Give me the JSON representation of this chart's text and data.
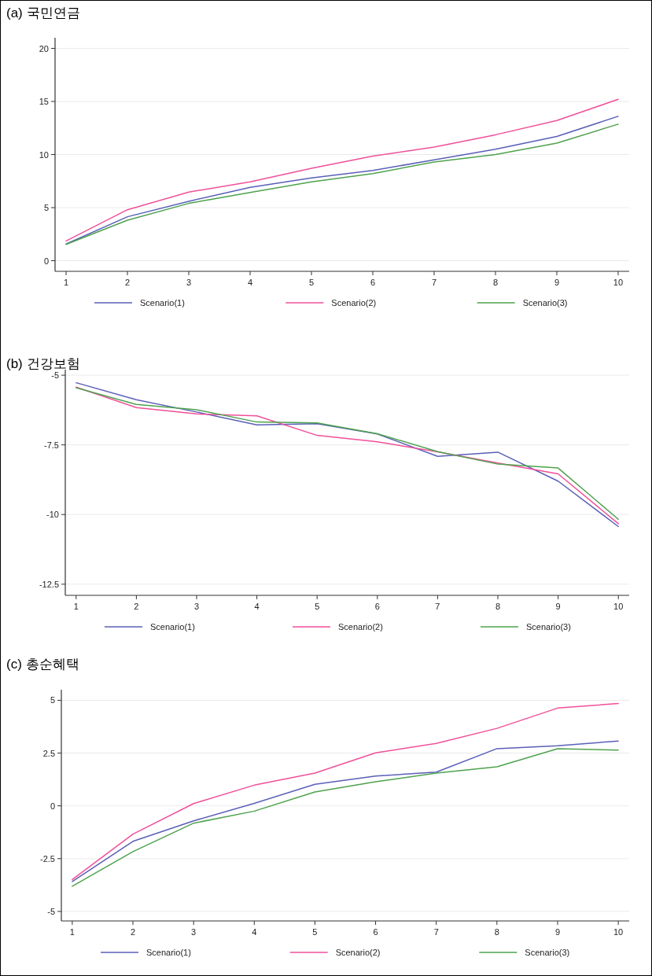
{
  "chart_data": [
    {
      "type": "line",
      "title": "(a) 국민연금",
      "x": [
        1,
        2,
        3,
        4,
        5,
        6,
        7,
        8,
        9,
        10
      ],
      "xlim": [
        0.82,
        10.18
      ],
      "xticks": [
        1,
        2,
        3,
        4,
        5,
        6,
        7,
        8,
        9,
        10
      ],
      "ylim": [
        -1,
        21
      ],
      "yticks": [
        0,
        5,
        10,
        15,
        20
      ],
      "grid": "y",
      "legend": "bottom",
      "line_style": "solid",
      "series": [
        {
          "name": "Scenario(1)",
          "color": "#5a5fb8",
          "values": [
            1.57,
            4.14,
            5.6,
            6.9,
            7.8,
            8.5,
            9.5,
            10.5,
            11.7,
            13.6
          ]
        },
        {
          "name": "Scenario(2)",
          "color": "#f0509a",
          "values": [
            1.86,
            4.8,
            6.46,
            7.43,
            8.7,
            9.86,
            10.7,
            11.86,
            13.2,
            15.2
          ]
        },
        {
          "name": "Scenario(3)",
          "color": "#4ea24e",
          "values": [
            1.54,
            3.82,
            5.4,
            6.43,
            7.43,
            8.2,
            9.3,
            10.0,
            11.07,
            12.86
          ]
        }
      ]
    },
    {
      "type": "line",
      "title": "(b) 건강보험",
      "x": [
        1,
        2,
        3,
        4,
        5,
        6,
        7,
        8,
        9,
        10
      ],
      "xlim": [
        0.82,
        10.18
      ],
      "xticks": [
        1,
        2,
        3,
        4,
        5,
        6,
        7,
        8,
        9,
        10
      ],
      "ylim": [
        -12.9,
        -4.8
      ],
      "yticks": [
        -5,
        -7.5,
        -10,
        -12.5
      ],
      "grid": "y",
      "legend": "bottom",
      "line_style": "solid",
      "series": [
        {
          "name": "Scenario(1)",
          "color": "#5a5fb8",
          "values": [
            -5.27,
            -5.88,
            -6.32,
            -6.78,
            -6.74,
            -7.11,
            -7.91,
            -7.76,
            -8.8,
            -10.43
          ]
        },
        {
          "name": "Scenario(2)",
          "color": "#f0509a",
          "values": [
            -5.43,
            -6.16,
            -6.39,
            -6.46,
            -7.16,
            -7.39,
            -7.75,
            -8.15,
            -8.54,
            -10.33
          ]
        },
        {
          "name": "Scenario(3)",
          "color": "#4ea24e",
          "values": [
            -5.45,
            -6.05,
            -6.24,
            -6.68,
            -6.71,
            -7.1,
            -7.74,
            -8.19,
            -8.33,
            -10.17
          ]
        }
      ]
    },
    {
      "type": "line",
      "title": "(c) 총순혜택",
      "x": [
        1,
        2,
        3,
        4,
        5,
        6,
        7,
        8,
        9,
        10
      ],
      "xlim": [
        0.82,
        10.18
      ],
      "xticks": [
        1,
        2,
        3,
        4,
        5,
        6,
        7,
        8,
        9,
        10
      ],
      "ylim": [
        -5.45,
        5.5
      ],
      "yticks": [
        -5,
        -2.5,
        0,
        2.5,
        5
      ],
      "grid": "y",
      "legend": "bottom",
      "line_style": "solid",
      "series": [
        {
          "name": "Scenario(1)",
          "color": "#5a5fb8",
          "values": [
            -3.58,
            -1.68,
            -0.71,
            0.12,
            1.02,
            1.41,
            1.6,
            2.71,
            2.85,
            3.07
          ]
        },
        {
          "name": "Scenario(2)",
          "color": "#f0509a",
          "values": [
            -3.49,
            -1.34,
            0.11,
            0.98,
            1.55,
            2.51,
            2.96,
            3.67,
            4.63,
            4.85
          ]
        },
        {
          "name": "Scenario(3)",
          "color": "#4ea24e",
          "values": [
            -3.81,
            -2.17,
            -0.82,
            -0.25,
            0.66,
            1.14,
            1.55,
            1.85,
            2.71,
            2.64
          ]
        }
      ]
    }
  ]
}
